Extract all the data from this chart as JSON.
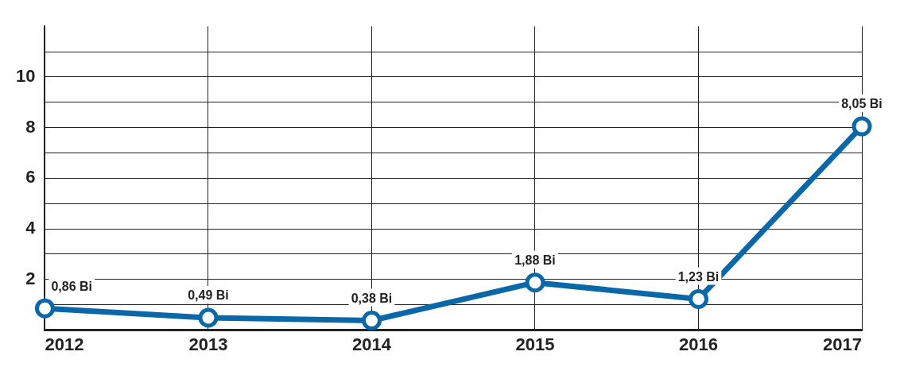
{
  "chart_data": {
    "type": "line",
    "categories": [
      "2012",
      "2013",
      "2014",
      "2015",
      "2016",
      "2017"
    ],
    "series": [
      {
        "color": "#0b68a8",
        "values": [
          0.86,
          0.49,
          0.38,
          1.88,
          1.23,
          8.05
        ],
        "value_labels": [
          "0,86 Bi",
          "0,49 Bi",
          "0,38 Bi",
          "1,88 Bi",
          "1,23 Bi",
          "8,05 Bi"
        ]
      }
    ],
    "ylim": [
      0,
      12
    ],
    "yticks": [
      {
        "value": 1,
        "label": null
      },
      2,
      {
        "value": 3,
        "label": null
      },
      4,
      {
        "value": 5,
        "label": null
      },
      6,
      {
        "value": 7,
        "label": null
      },
      8,
      {
        "value": 9,
        "label": null
      },
      10,
      {
        "value": 11,
        "label": null
      }
    ],
    "grid": true,
    "legend": false,
    "marker": "circle",
    "line_style": "solid"
  }
}
